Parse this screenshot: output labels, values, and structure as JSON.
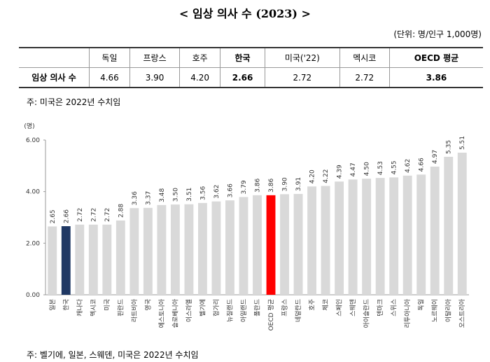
{
  "title": "< 임상 의사 수 (2023) >",
  "unit": "(단위: 명/인구 1,000명)",
  "table": {
    "header": [
      "독일",
      "프랑스",
      "호주",
      "한국",
      "미국('22)",
      "멕시코",
      "OECD 평균"
    ],
    "row_label": "임상 의사 수",
    "row": [
      "4.66",
      "3.90",
      "4.20",
      "2.66",
      "2.72",
      "2.72",
      "3.86"
    ]
  },
  "note": "주: 미국은 2022년 수치임",
  "chart_data": {
    "type": "bar",
    "y_label": "(명)",
    "categories": [
      "일본",
      "한국",
      "캐나다",
      "멕시코",
      "미국",
      "핀란드",
      "라트비아",
      "영국",
      "에스토니아",
      "슬로베니아",
      "이스라엘",
      "벨기에",
      "헝가리",
      "뉴질랜드",
      "아일랜드",
      "폴란드",
      "OECD 평균",
      "프랑스",
      "네덜란드",
      "호주",
      "체코",
      "스페인",
      "스웨덴",
      "아이슬란드",
      "덴마크",
      "스위스",
      "리투아니아",
      "독일",
      "노르웨이",
      "이탈리아",
      "오스트리아"
    ],
    "values": [
      2.65,
      2.66,
      2.72,
      2.72,
      2.72,
      2.88,
      3.36,
      3.37,
      3.48,
      3.5,
      3.51,
      3.56,
      3.62,
      3.66,
      3.79,
      3.86,
      3.86,
      3.9,
      3.91,
      4.2,
      4.22,
      4.39,
      4.47,
      4.5,
      4.53,
      4.55,
      4.62,
      4.66,
      4.97,
      5.35,
      5.51
    ],
    "value_labels": [
      "2.65",
      "2.66",
      "2.72",
      "2.72",
      "2.72",
      "2.88",
      "3.36",
      "3.37",
      "3.48",
      "3.50",
      "3.51",
      "3.56",
      "3.62",
      "3.66",
      "3.79",
      "3.86",
      "3.86",
      "3.90",
      "3.91",
      "4.20",
      "4.22",
      "4.39",
      "4.47",
      "4.50",
      "4.53",
      "4.55",
      "4.62",
      "4.66",
      "4.97",
      "5.35",
      "5.51"
    ],
    "colors": [
      "#d9d9d9",
      "#1f3864",
      "#d9d9d9",
      "#d9d9d9",
      "#d9d9d9",
      "#d9d9d9",
      "#d9d9d9",
      "#d9d9d9",
      "#d9d9d9",
      "#d9d9d9",
      "#d9d9d9",
      "#d9d9d9",
      "#d9d9d9",
      "#d9d9d9",
      "#d9d9d9",
      "#d9d9d9",
      "#ff0000",
      "#d9d9d9",
      "#d9d9d9",
      "#d9d9d9",
      "#d9d9d9",
      "#d9d9d9",
      "#d9d9d9",
      "#d9d9d9",
      "#d9d9d9",
      "#d9d9d9",
      "#d9d9d9",
      "#d9d9d9",
      "#d9d9d9",
      "#d9d9d9",
      "#d9d9d9"
    ],
    "ylim": [
      0,
      6
    ],
    "yticks": [
      {
        "value": 0,
        "label": "0.00"
      },
      {
        "value": 2,
        "label": "2.00"
      },
      {
        "value": 4,
        "label": "4.00"
      },
      {
        "value": 6,
        "label": "6.00"
      }
    ]
  },
  "footnote": "주: 벨기에, 일본, 스웨덴, 미국은 2022년 수치임"
}
